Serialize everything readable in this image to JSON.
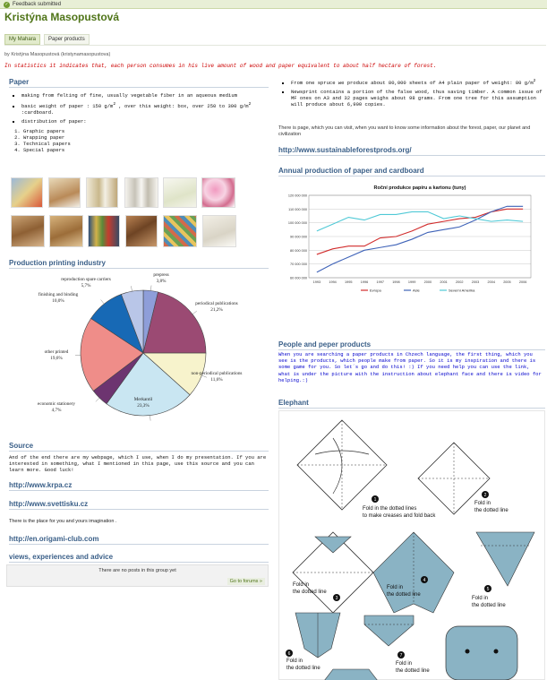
{
  "notice": {
    "text": "Feedback submitted"
  },
  "page": {
    "title": "Kristýna Masopustová",
    "tabs": [
      {
        "label": "My Mahara",
        "active": true
      },
      {
        "label": "Paper products",
        "active": false
      }
    ],
    "byline": "by Kristýna Masopustová (kristynamasopustova)",
    "intro": "In statistics it indicates that, each person consumes in his live amount of wood and paper equivalent to about half hectare of forest."
  },
  "paper": {
    "heading": "Paper",
    "bullets": [
      "making from felting of  fine, usually vegetable fiber in an aqueous medium",
      "basic weight of paper : 150 g/m",
      "distribution of paper:"
    ],
    "weight_tail": " , over this weight: box, over 250 to 300 g/m",
    "weight_tail2": " :cardboard.",
    "sup": "2",
    "types": [
      "Graphic papers",
      "Wrapping paper",
      "Technical papers",
      "Special papers"
    ]
  },
  "right_top": {
    "bullets": [
      "From one spruce we produce about 80,000 sheets of A4 plain paper of weight: 80 g/m",
      "Newsprint contains a portion of the false wood, thus saving timber. A common issue of MF ones on A3 and 32 pages weighs about 98 grams. From one tree for this assumption will produce about 6,900 copies."
    ],
    "sup": "2",
    "info": "There is page, which you can visit, when you want to know some information about the forest, paper, our planet and civilization",
    "link": "http://www.sustainableforestprods.org/"
  },
  "chart1": {
    "heading": "Production printing industry",
    "chart_data": {
      "type": "pie",
      "slices": [
        {
          "label": "prepress",
          "value": 3.8,
          "color": "#8e9ed9"
        },
        {
          "label": "periodical publications",
          "value": 21.2,
          "color": "#9b4a73"
        },
        {
          "label": "non-periodical publications",
          "value": 11.6,
          "color": "#f7f3cc"
        },
        {
          "label": "Merkantil",
          "value": 23.3,
          "color": "#c9e6f2"
        },
        {
          "label": "economic stationery",
          "value": 4.7,
          "color": "#6d3470"
        },
        {
          "label": "other printed",
          "value": 19.6,
          "color": "#ef8d89"
        },
        {
          "label": "finishing and binding",
          "value": 10.0,
          "color": "#1769b5"
        },
        {
          "label": "reproduction spare carriers",
          "value": 5.7,
          "color": "#b9c6e8"
        }
      ],
      "value_labels": [
        "3,8%",
        "21,2%",
        "11,6%",
        "23,3%",
        "4,7%",
        "19,6%",
        "10,0%",
        "5,7%"
      ]
    }
  },
  "chart2": {
    "heading": "Annual production of paper and cardboard",
    "chart_data": {
      "type": "line",
      "title": "Roční produkce papíru a kartonu (tuny)",
      "x": [
        "1993",
        "1994",
        "1995",
        "1996",
        "1997",
        "1998",
        "1999",
        "2000",
        "2001",
        "2002",
        "2003",
        "2004",
        "2005",
        "2006"
      ],
      "y_ticks": [
        "60 000 000",
        "70 000 000",
        "80 000 000",
        "90 000 000",
        "100 000 000",
        "110 000 000",
        "120 000 000"
      ],
      "ylim": [
        60000000,
        120000000
      ],
      "grid": true,
      "legend": "bottom",
      "series": [
        {
          "name": "Evropa",
          "color": "#d12b2b",
          "values": [
            77000000,
            81000000,
            83000000,
            83000000,
            89000000,
            90000000,
            94000000,
            99000000,
            101000000,
            103000000,
            104000000,
            108000000,
            110000000,
            110000000
          ]
        },
        {
          "name": "Asie",
          "color": "#3f63b8",
          "values": [
            64000000,
            70000000,
            75000000,
            80000000,
            82000000,
            84000000,
            88000000,
            93000000,
            95000000,
            97000000,
            102000000,
            108000000,
            112000000,
            112000000
          ]
        },
        {
          "name": "Severní Amerika",
          "color": "#4fc9d6",
          "values": [
            94000000,
            99000000,
            104000000,
            102000000,
            106000000,
            106000000,
            108000000,
            108000000,
            103000000,
            105000000,
            103000000,
            101000000,
            102000000,
            101000000
          ]
        }
      ]
    }
  },
  "source": {
    "heading": "Source",
    "text": "And of the end there are my webpage, which I use, when I do my presentation. If you are interested in something, what I mentioned in this page, use this source and you can learn more. Good luck!",
    "link1": "http://www.krpa.cz",
    "link2": "http://www.svettisku.cz",
    "imagination": "There is the place for you and yours imagination .",
    "link3": "http://en.origami-club.com"
  },
  "views": {
    "heading": "views, experiences and advice",
    "no_posts": "There are no posts in this group yet",
    "go_forum": "Go to forums »"
  },
  "people": {
    "heading": "People and peper products",
    "text": "When you are searching a paper products in Chzech language, the first thing, which you see is the products, which people make from paper. So it is my inspiration and there is some game for you. So let´s go and do this! :) If you need help you can use the link, what is under the picture with the instruction about elephant face and there is video for helping.:)"
  },
  "elephant": {
    "heading": "Elephant",
    "steps": [
      {
        "num": "1",
        "text1": "Fold in the dotted lines",
        "text2": "to make creases and fold back"
      },
      {
        "num": "2",
        "text1": "Fold in",
        "text2": "the dotted line"
      },
      {
        "num": "3",
        "text1": "Fold in",
        "text2": "the dotted line"
      },
      {
        "num": "4",
        "text1": "Fold in",
        "text2": "the dotted line"
      },
      {
        "num": "5",
        "text1": "Fold in",
        "text2": "the dotted line"
      },
      {
        "num": "6",
        "text1": "Fold in",
        "text2": "the dotted line"
      },
      {
        "num": "7",
        "text1": "Fold in",
        "text2": "the dotted line"
      }
    ]
  }
}
